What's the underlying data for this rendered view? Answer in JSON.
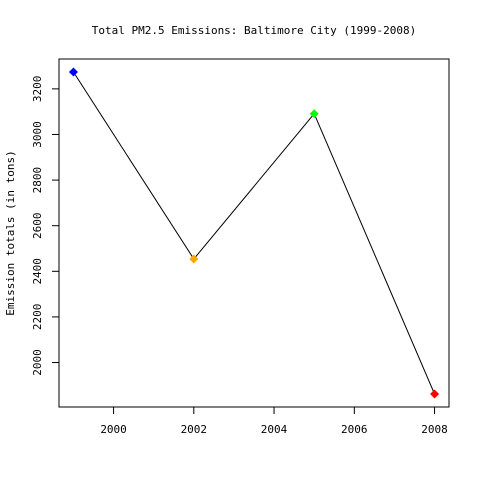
{
  "chart_data": {
    "type": "line",
    "title": "Total PM2.5 Emissions:  Baltimore City (1999-2008)",
    "xlabel": "",
    "ylabel": "Emission totals (in tons)",
    "x": [
      1999,
      2002,
      2005,
      2008
    ],
    "series": [
      {
        "values": [
          3274,
          2454,
          3091,
          1862
        ],
        "point_colors": [
          "#0000FF",
          "#FFA500",
          "#00FF00",
          "#FF0000"
        ],
        "line_color": "#000000",
        "marker": "diamond"
      }
    ],
    "xlim": [
      1998.64,
      2008.36
    ],
    "ylim": [
      1805,
      3331
    ],
    "x_ticks": [
      2000,
      2002,
      2004,
      2006,
      2008
    ],
    "y_ticks": [
      2000,
      2200,
      2400,
      2600,
      2800,
      3000,
      3200
    ],
    "grid": false,
    "legend": "none"
  }
}
